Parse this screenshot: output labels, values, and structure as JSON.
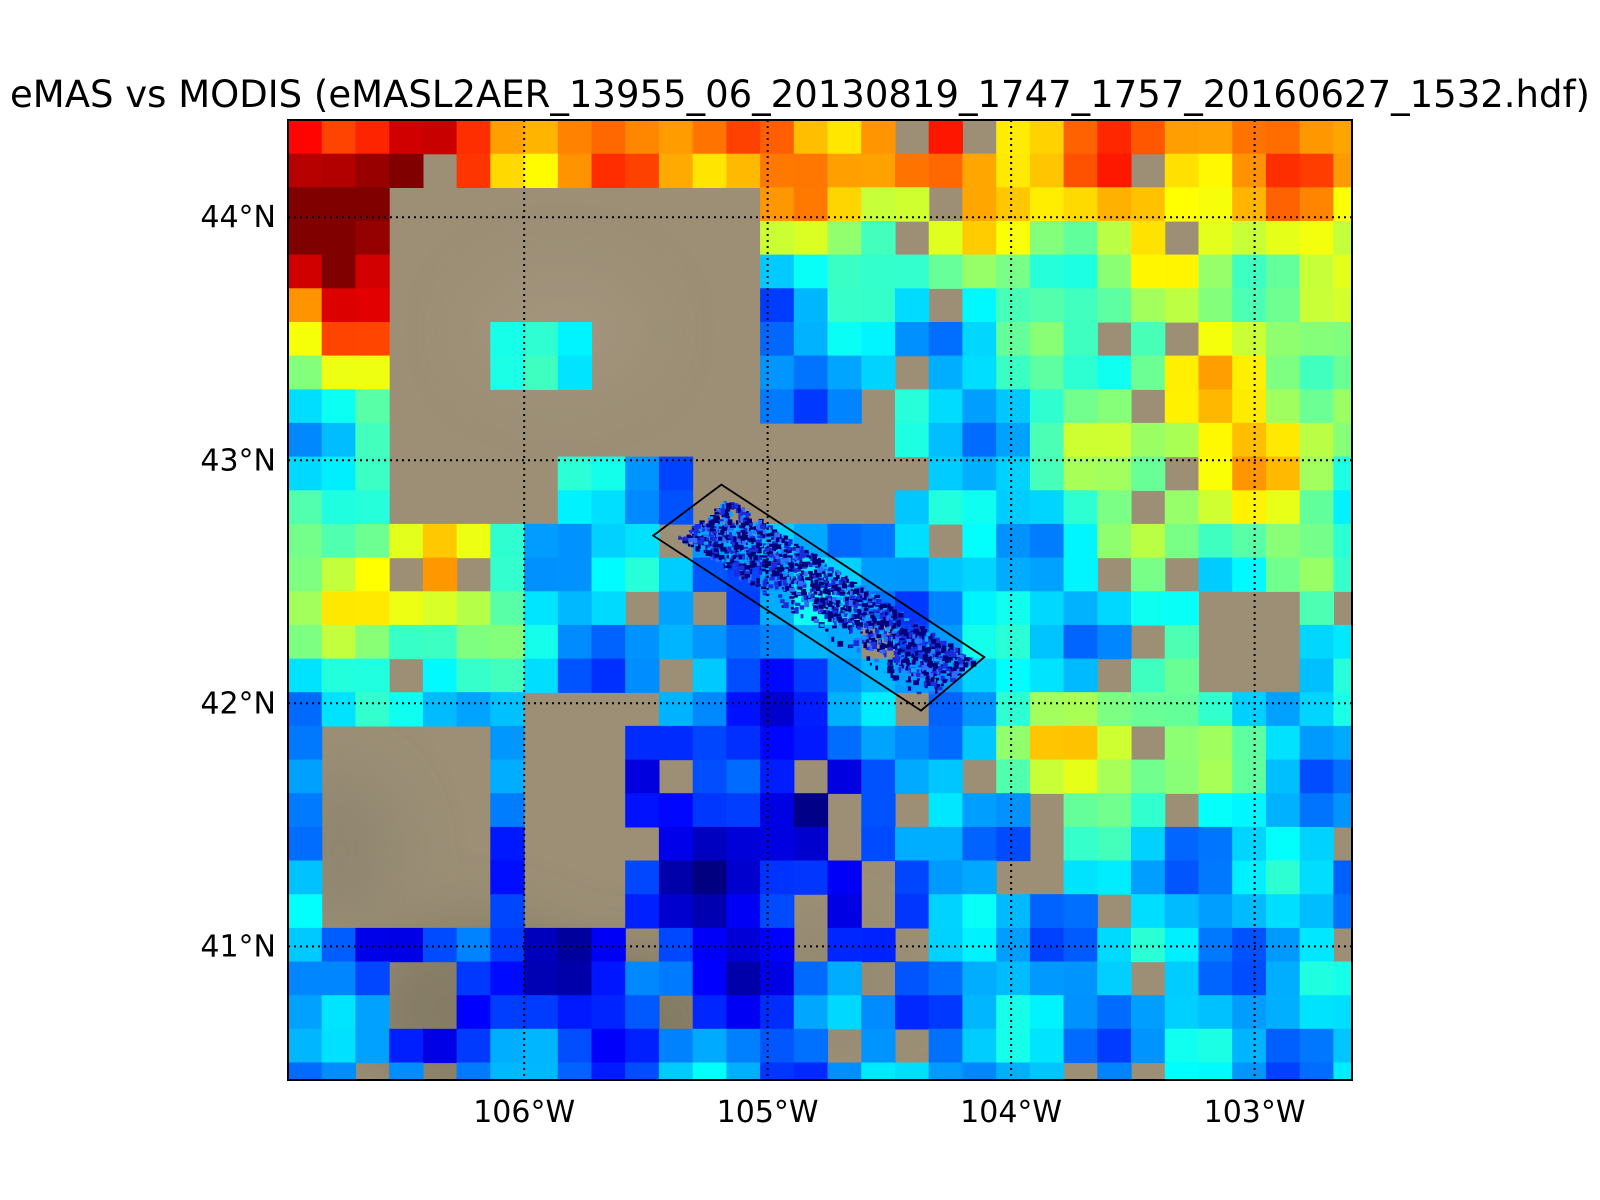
{
  "figure": {
    "title": "eMAS vs MODIS (eMASL2AER_13955_06_20130819_1747_1757_20160627_1532.hdf)"
  },
  "map": {
    "lon_range": [
      -106.97,
      -102.6
    ],
    "lat_range": [
      40.45,
      44.4
    ],
    "meridians": [
      -106,
      -105,
      -104,
      -103
    ],
    "parallels": [
      41,
      42,
      43,
      44
    ],
    "lon_labels": [
      "106°W",
      "105°W",
      "104°W",
      "103°W"
    ],
    "lat_labels": [
      "41°N",
      "42°N",
      "43°N",
      "44°N"
    ],
    "gridline_style": "dotted",
    "background": "true-color satellite land surface (tan/brown)",
    "colormap": "jet",
    "background_color": "#9c8f76",
    "flight_track_box": [
      [
        -105.47,
        42.69
      ],
      [
        -105.19,
        42.9
      ],
      [
        -104.11,
        42.19
      ],
      [
        -104.37,
        41.97
      ]
    ],
    "flight_track_color": "#000000"
  }
}
